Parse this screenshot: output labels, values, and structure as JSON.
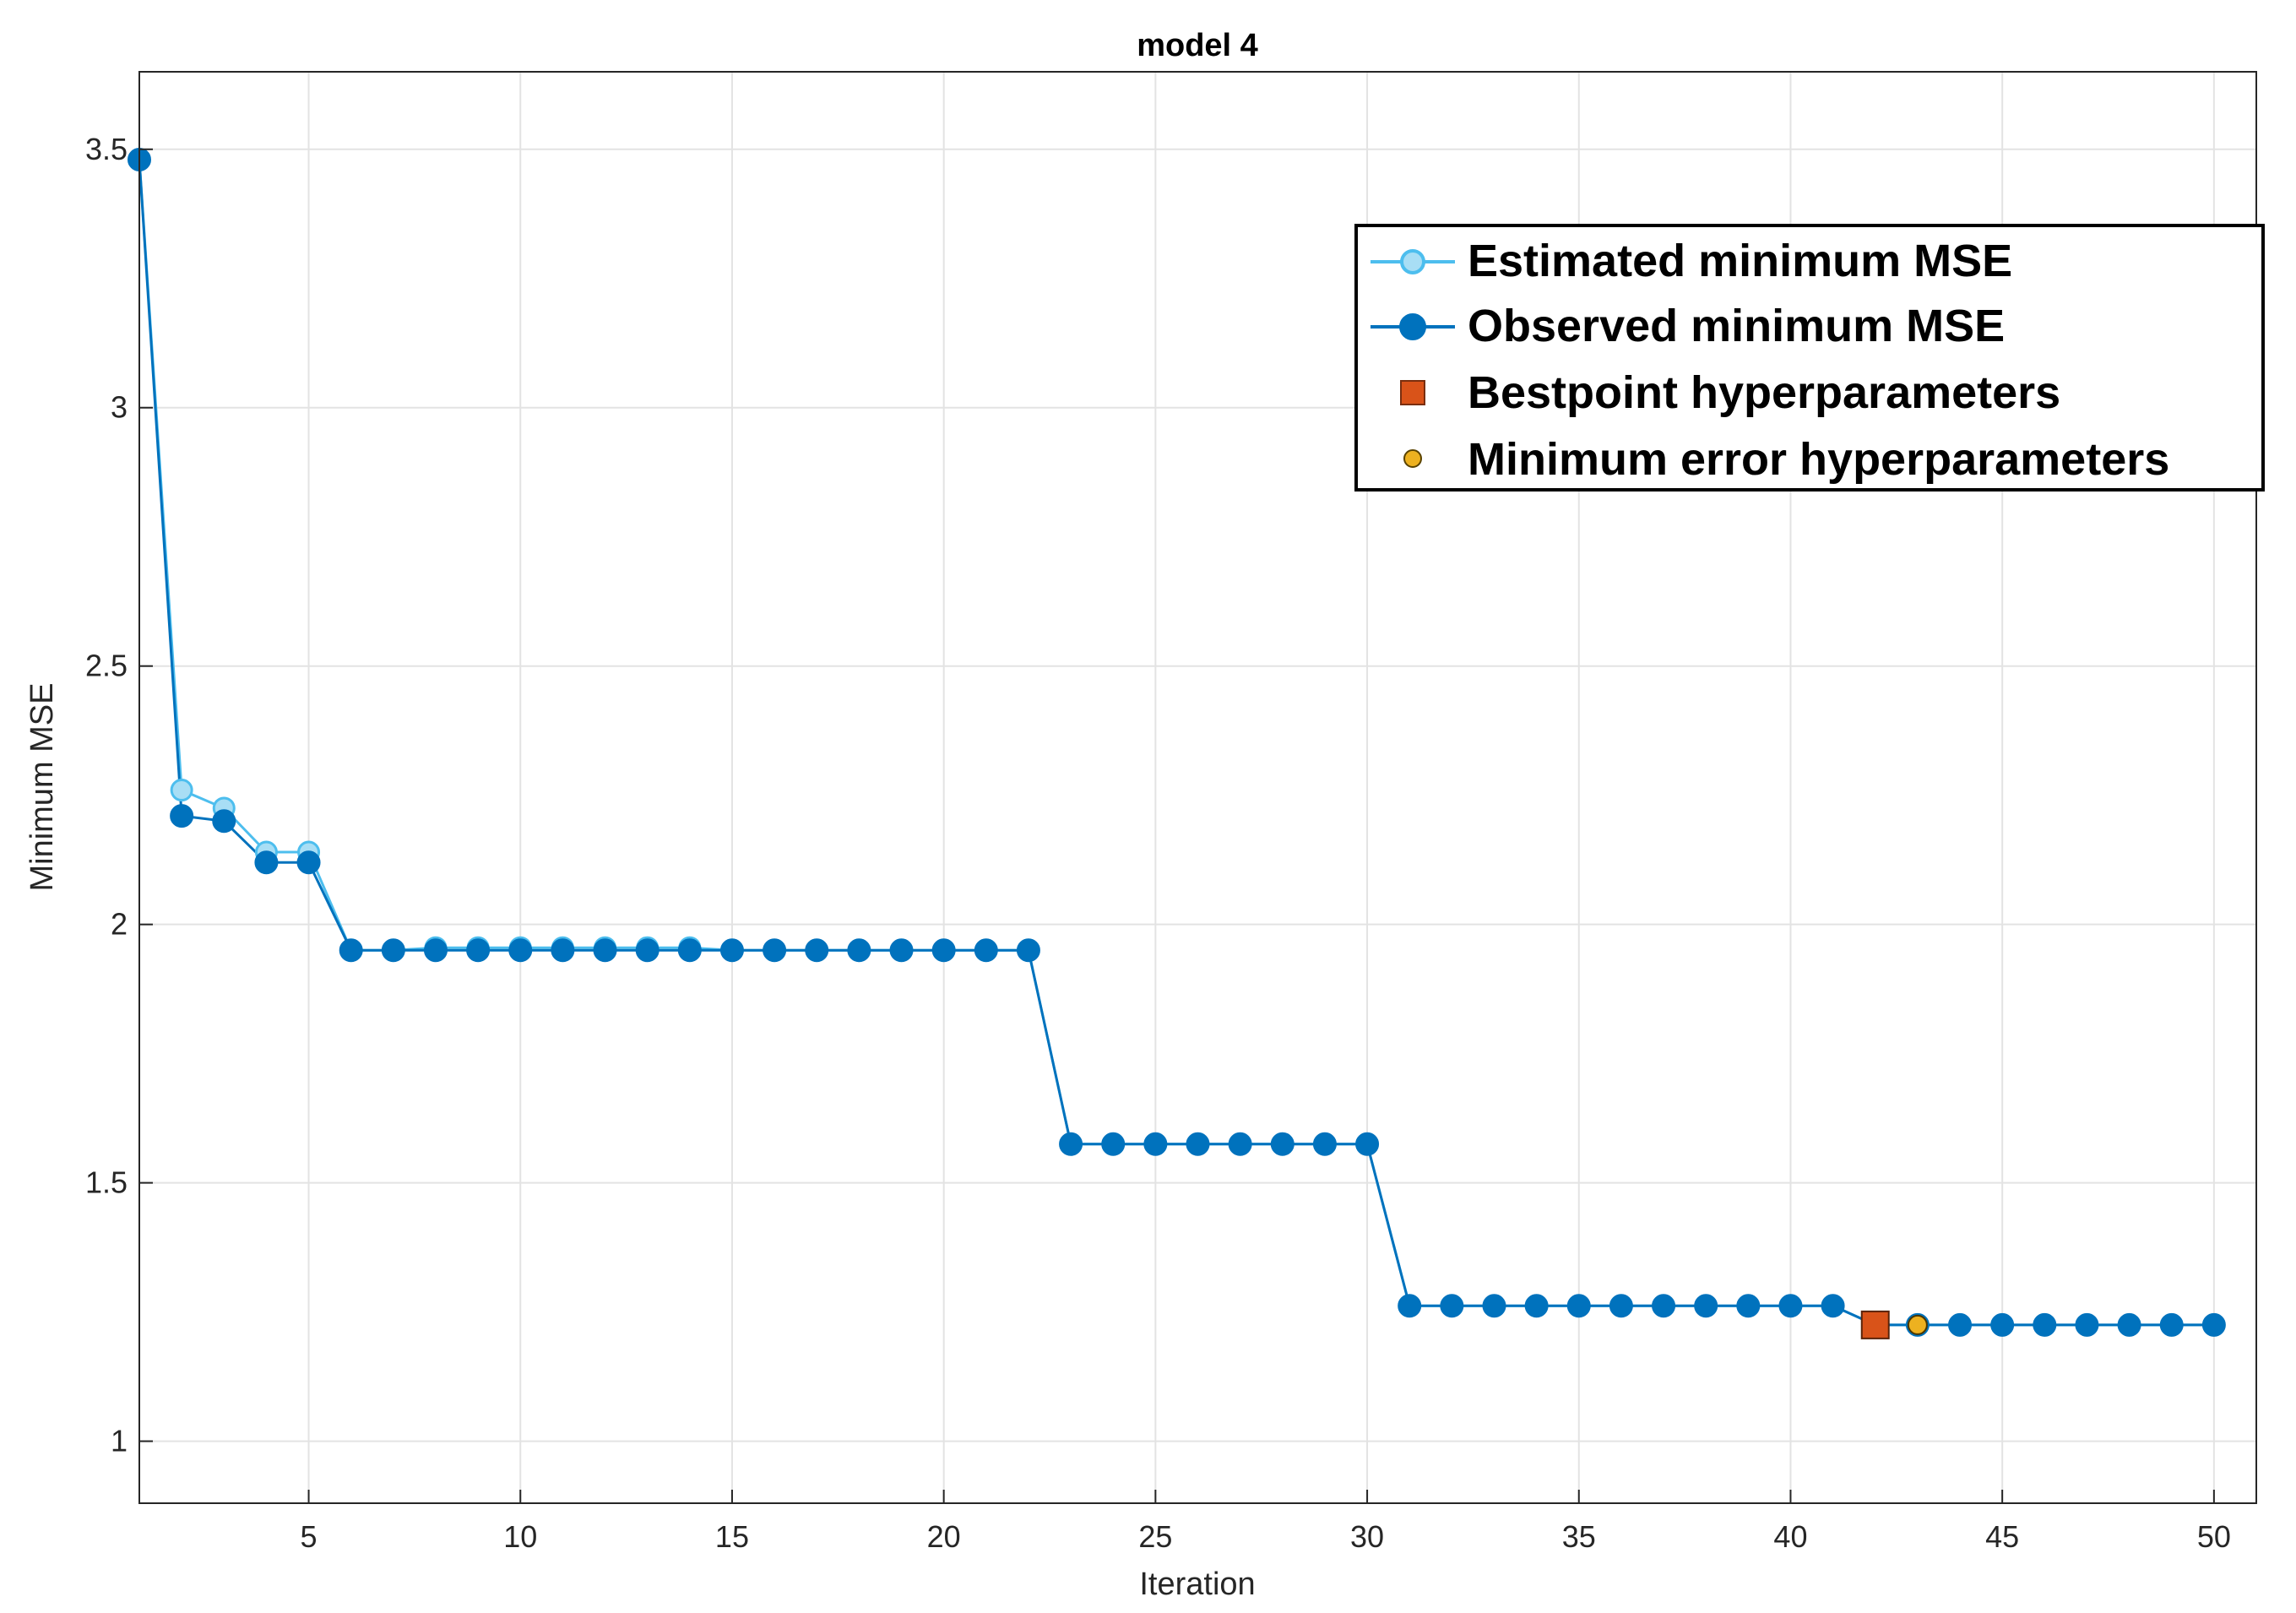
{
  "chart_data": {
    "type": "line",
    "title": "model 4",
    "xlabel": "Iteration",
    "ylabel": "Minimum MSE",
    "xlim": [
      1,
      51
    ],
    "ylim": [
      0.88,
      3.65
    ],
    "xticks": [
      5,
      10,
      15,
      20,
      25,
      30,
      35,
      40,
      45,
      50
    ],
    "yticks": [
      1,
      1.5,
      2,
      2.5,
      3,
      3.5
    ],
    "xtick_labels": [
      "5",
      "10",
      "15",
      "20",
      "25",
      "30",
      "35",
      "40",
      "45",
      "50"
    ],
    "ytick_labels": [
      "1",
      "1.5",
      "2",
      "2.5",
      "3",
      "3.5"
    ],
    "grid": true,
    "legend_position": "top-right",
    "series": [
      {
        "name": "Estimated minimum MSE",
        "color": "#4dbeee",
        "marker": "open-circle",
        "x": [
          1,
          2,
          3,
          4,
          5,
          6,
          7,
          8,
          9,
          10,
          11,
          12,
          13,
          14,
          15,
          16,
          17,
          18,
          19,
          20,
          21,
          22,
          23,
          24,
          25,
          26,
          27,
          28,
          29,
          30,
          31,
          32,
          33,
          34,
          35,
          36,
          37,
          38,
          39,
          40,
          41,
          42,
          43,
          44,
          45,
          46,
          47,
          48,
          49,
          50
        ],
        "y": [
          3.48,
          2.26,
          2.225,
          2.14,
          2.14,
          1.95,
          1.95,
          1.955,
          1.955,
          1.955,
          1.955,
          1.955,
          1.955,
          1.955,
          1.95,
          1.95,
          1.95,
          1.95,
          1.95,
          1.95,
          1.95,
          1.95,
          1.575,
          1.575,
          1.575,
          1.575,
          1.575,
          1.575,
          1.575,
          1.575,
          1.262,
          1.262,
          1.262,
          1.262,
          1.262,
          1.262,
          1.262,
          1.262,
          1.262,
          1.262,
          1.262,
          1.225,
          1.225,
          1.225,
          1.225,
          1.225,
          1.225,
          1.225,
          1.225,
          1.225
        ]
      },
      {
        "name": "Observed minimum MSE",
        "color": "#0072bd",
        "marker": "filled-circle",
        "x": [
          1,
          2,
          3,
          4,
          5,
          6,
          7,
          8,
          9,
          10,
          11,
          12,
          13,
          14,
          15,
          16,
          17,
          18,
          19,
          20,
          21,
          22,
          23,
          24,
          25,
          26,
          27,
          28,
          29,
          30,
          31,
          32,
          33,
          34,
          35,
          36,
          37,
          38,
          39,
          40,
          41,
          42,
          43,
          44,
          45,
          46,
          47,
          48,
          49,
          50
        ],
        "y": [
          3.48,
          2.21,
          2.2,
          2.12,
          2.12,
          1.95,
          1.95,
          1.95,
          1.95,
          1.95,
          1.95,
          1.95,
          1.95,
          1.95,
          1.95,
          1.95,
          1.95,
          1.95,
          1.95,
          1.95,
          1.95,
          1.95,
          1.575,
          1.575,
          1.575,
          1.575,
          1.575,
          1.575,
          1.575,
          1.575,
          1.262,
          1.262,
          1.262,
          1.262,
          1.262,
          1.262,
          1.262,
          1.262,
          1.262,
          1.262,
          1.262,
          1.225,
          1.225,
          1.225,
          1.225,
          1.225,
          1.225,
          1.225,
          1.225,
          1.225
        ]
      },
      {
        "name": "Bestpoint hyperparameters",
        "color": "#d95319",
        "marker": "square",
        "x": [
          42
        ],
        "y": [
          1.225
        ]
      },
      {
        "name": "Minimum error hyperparameters",
        "color": "#edb120",
        "marker": "small-circle",
        "x": [
          43
        ],
        "y": [
          1.225
        ]
      }
    ]
  }
}
